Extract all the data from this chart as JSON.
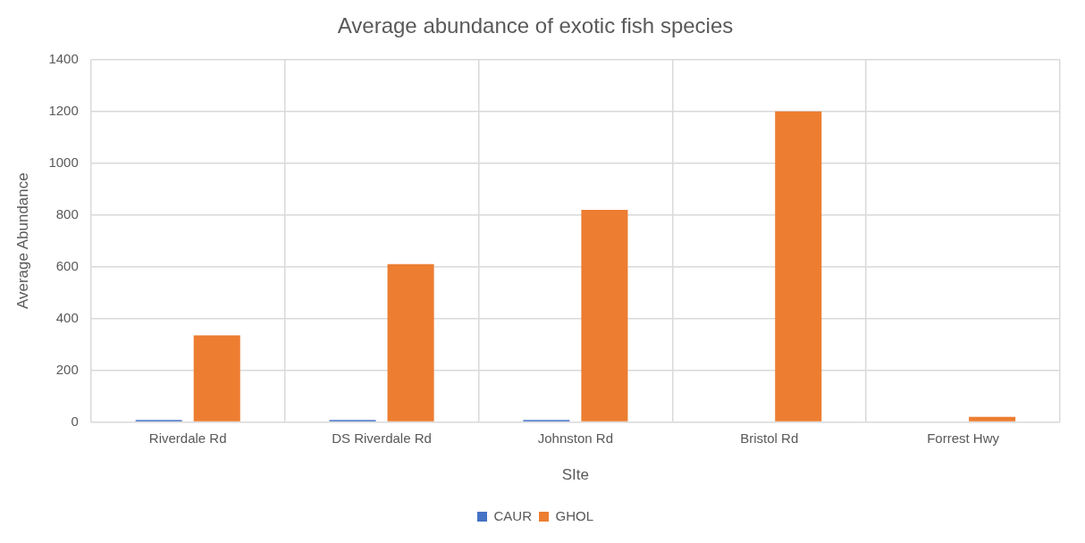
{
  "chart_data": {
    "type": "bar",
    "title": "Average abundance of exotic fish species",
    "xlabel": "SIte",
    "ylabel": "Average Abundance",
    "categories": [
      "Riverdale Rd",
      "DS Riverdale Rd",
      "Johnston Rd",
      "Bristol Rd",
      "Forrest Hwy"
    ],
    "series": [
      {
        "name": "CAUR",
        "color": "#4472c4",
        "values": [
          8,
          8,
          8,
          0,
          0
        ]
      },
      {
        "name": "GHOL",
        "color": "#ed7d31",
        "values": [
          335,
          610,
          820,
          1200,
          20
        ]
      }
    ],
    "ylim": [
      0,
      1400
    ],
    "yticks": [
      0,
      200,
      400,
      600,
      800,
      1000,
      1200,
      1400
    ],
    "grid": true,
    "legend": "bottom"
  }
}
